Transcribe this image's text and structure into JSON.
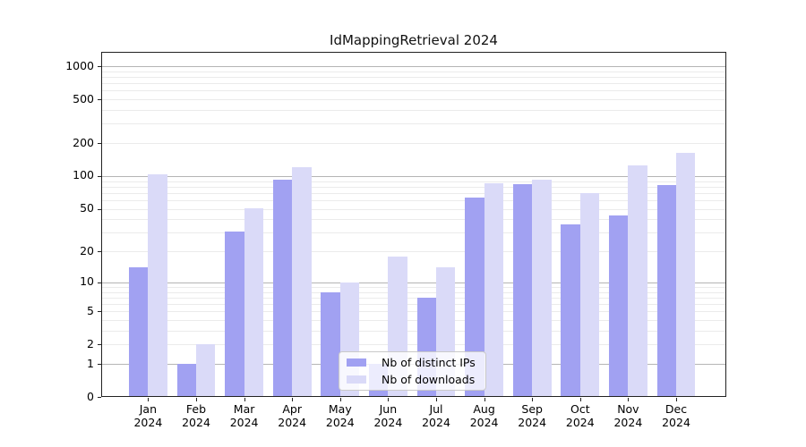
{
  "title": "IdMappingRetrieval 2024",
  "chart_data": {
    "type": "bar",
    "title": "IdMappingRetrieval 2024",
    "categories": [
      "Jan",
      "Feb",
      "Mar",
      "Apr",
      "May",
      "Jun",
      "Jul",
      "Aug",
      "Sep",
      "Oct",
      "Nov",
      "Dec"
    ],
    "category_year": "2024",
    "series": [
      {
        "name": "Nb of distinct IPs",
        "color": "#a1a1f2",
        "values": [
          14,
          1,
          31,
          93,
          8,
          1,
          7,
          64,
          84,
          36,
          43,
          82
        ]
      },
      {
        "name": "Nb of downloads",
        "color": "#dadaf8",
        "values": [
          104,
          2,
          51,
          120,
          10,
          18,
          14,
          86,
          93,
          70,
          125,
          162
        ]
      }
    ],
    "xlabel": "",
    "ylabel": "",
    "yscale": "log1p",
    "y_ticks": [
      0,
      1,
      2,
      5,
      10,
      20,
      50,
      100,
      200,
      500,
      1000
    ],
    "ylim": [
      0,
      1360
    ],
    "grid": {
      "orientation": "horizontal",
      "major_lines_at": [
        1,
        10,
        100,
        1000
      ],
      "minor_lines": "2-9 per decade"
    },
    "legend": {
      "position": "inside lower-center",
      "entries": [
        "Nb of distinct IPs",
        "Nb of downloads"
      ]
    }
  },
  "colors": {
    "bar_distinct_ips": "#a1a1f2",
    "bar_downloads": "#dadaf8",
    "grid_major": "#b5b5b5",
    "grid_minor": "#ebebeb",
    "spine": "#222222",
    "background": "#ffffff"
  }
}
